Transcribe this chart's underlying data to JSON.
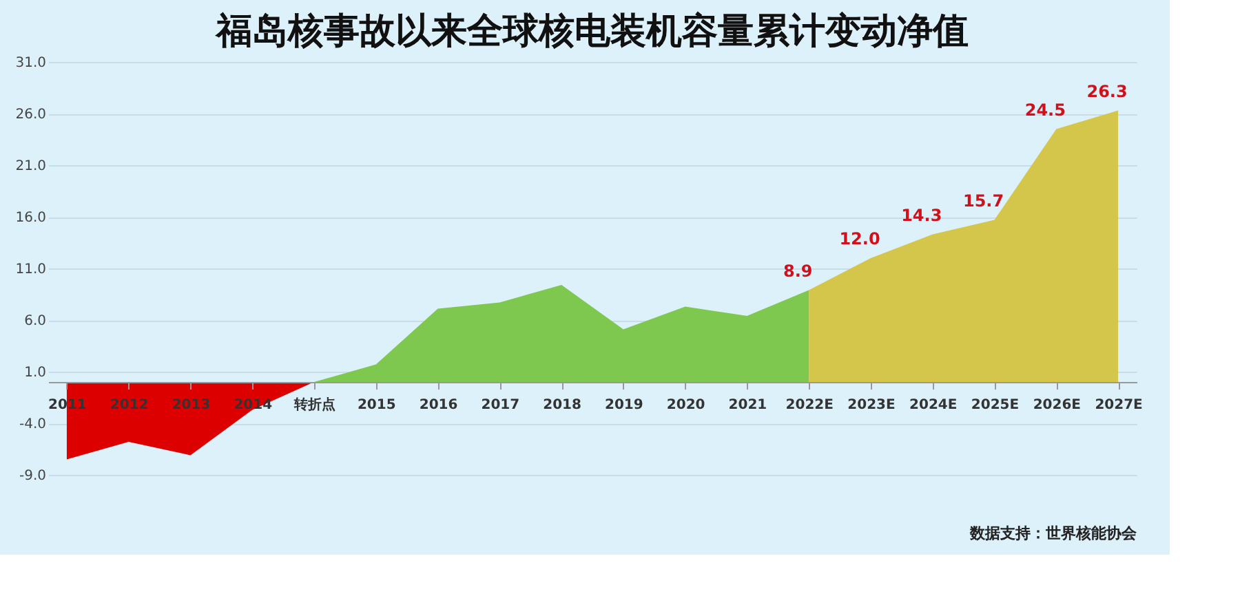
{
  "chart_data": {
    "type": "area",
    "title": "福岛核事故以来全球核电装机容量累计变动净值",
    "categories": [
      "2011",
      "2012",
      "2013",
      "2014",
      "转折点",
      "2015",
      "2016",
      "2017",
      "2018",
      "2019",
      "2020",
      "2021",
      "2022E",
      "2023E",
      "2024E",
      "2025E",
      "2026E",
      "2027E"
    ],
    "series": [
      {
        "color": "#dd0000",
        "values": [
          -7.5,
          -5.8,
          -7.1,
          -2.7,
          0,
          null,
          null,
          null,
          null,
          null,
          null,
          null,
          null,
          null,
          null,
          null,
          null,
          null
        ]
      },
      {
        "color": "#7ec850",
        "values": [
          null,
          null,
          null,
          null,
          0,
          1.7,
          7.1,
          7.7,
          9.4,
          5.1,
          7.3,
          6.4,
          8.9,
          null,
          null,
          null,
          null,
          null
        ]
      },
      {
        "color": "#d4c64a",
        "values": [
          null,
          null,
          null,
          null,
          null,
          null,
          null,
          null,
          null,
          null,
          null,
          null,
          8.9,
          12.0,
          14.3,
          15.7,
          24.5,
          26.3
        ],
        "value_labels": [
          null,
          null,
          null,
          null,
          null,
          null,
          null,
          null,
          null,
          null,
          null,
          null,
          "8.9",
          "12.0",
          "14.3",
          "15.7",
          "24.5",
          "26.3"
        ]
      }
    ],
    "ylim": [
      -9,
      31
    ],
    "yticks": [
      {
        "value": -9,
        "label": "-9.0"
      },
      {
        "value": -4,
        "label": "-4.0"
      },
      {
        "value": 1,
        "label": "1.0"
      },
      {
        "value": 6,
        "label": "6.0"
      },
      {
        "value": 11,
        "label": "11.0"
      },
      {
        "value": 16,
        "label": "16.0"
      },
      {
        "value": 21,
        "label": "21.0"
      },
      {
        "value": 26,
        "label": "26.0"
      },
      {
        "value": 31,
        "label": "31.0"
      }
    ],
    "grid": "y",
    "annotations": [
      "数据支持：世界核能协会"
    ]
  }
}
